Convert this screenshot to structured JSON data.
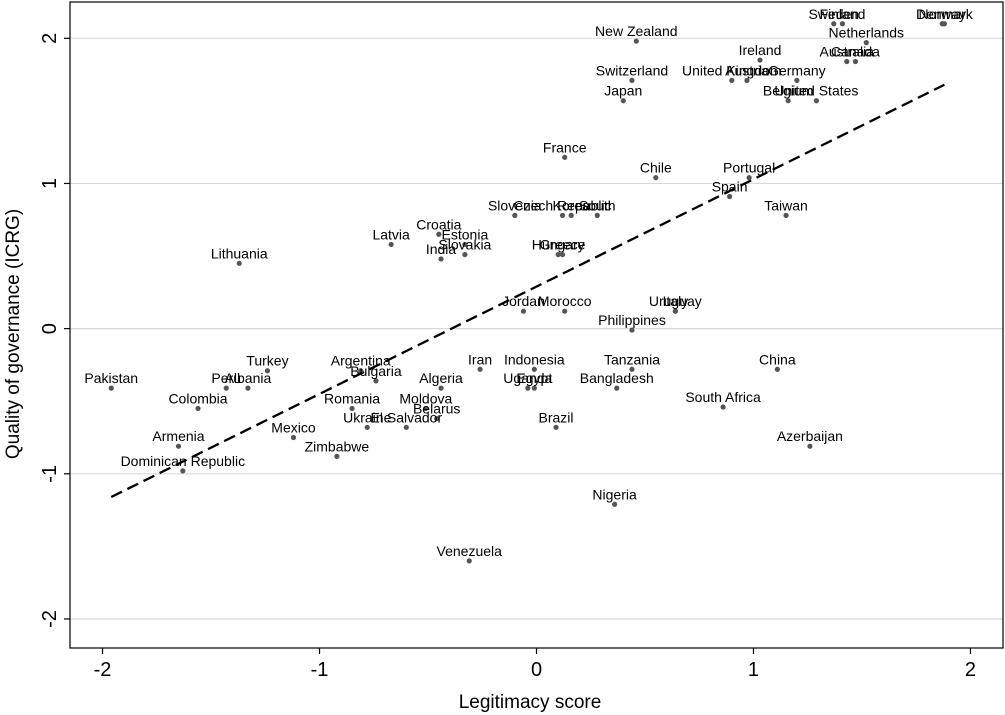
{
  "chart_data": {
    "type": "scatter",
    "title": "",
    "xlabel": "Legitimacy score",
    "ylabel": "Quality of governance (ICRG)",
    "xlim": [
      -2.15,
      2.15
    ],
    "ylim": [
      -2.2,
      2.25
    ],
    "xticks": [
      -2,
      -1,
      0,
      1,
      2
    ],
    "yticks": [
      -2,
      -1,
      0,
      1,
      2
    ],
    "xtick_labels": [
      "-2",
      "-1",
      "0",
      "1",
      "2"
    ],
    "ytick_labels": [
      "-2",
      "-1",
      "0",
      "1",
      "2"
    ],
    "grid": "horizontal",
    "legend": "none",
    "colors": {
      "points": "#555555",
      "fit_line": "#000000",
      "grid": "#d9d9d9",
      "frame": "#000000"
    },
    "fit_line": {
      "style": "dashed",
      "x": [
        -1.96,
        1.88
      ],
      "y": [
        -1.16,
        1.68
      ]
    },
    "points": [
      {
        "label": "Denmark",
        "x": 1.88,
        "y": 2.1
      },
      {
        "label": "Norway",
        "x": 1.87,
        "y": 2.1
      },
      {
        "label": "Sweden",
        "x": 1.37,
        "y": 2.1
      },
      {
        "label": "Finland",
        "x": 1.41,
        "y": 2.1
      },
      {
        "label": "Netherlands",
        "x": 1.52,
        "y": 1.97
      },
      {
        "label": "New Zealand",
        "x": 0.46,
        "y": 1.98
      },
      {
        "label": "Ireland",
        "x": 1.03,
        "y": 1.85
      },
      {
        "label": "Australia",
        "x": 1.43,
        "y": 1.84
      },
      {
        "label": "Canada",
        "x": 1.47,
        "y": 1.84
      },
      {
        "label": "Switzerland",
        "x": 0.44,
        "y": 1.71
      },
      {
        "label": "United Kingdom",
        "x": 0.9,
        "y": 1.71
      },
      {
        "label": "Austria",
        "x": 0.97,
        "y": 1.71
      },
      {
        "label": "Germany",
        "x": 1.2,
        "y": 1.71
      },
      {
        "label": "Belgium",
        "x": 1.16,
        "y": 1.57
      },
      {
        "label": "United States",
        "x": 1.29,
        "y": 1.57
      },
      {
        "label": "Japan",
        "x": 0.4,
        "y": 1.57
      },
      {
        "label": "France",
        "x": 0.13,
        "y": 1.18
      },
      {
        "label": "Chile",
        "x": 0.55,
        "y": 1.04
      },
      {
        "label": "Portugal",
        "x": 0.98,
        "y": 1.04
      },
      {
        "label": "Spain",
        "x": 0.89,
        "y": 0.91
      },
      {
        "label": "Taiwan",
        "x": 1.15,
        "y": 0.78
      },
      {
        "label": "Slovenia",
        "x": -0.1,
        "y": 0.78
      },
      {
        "label": "Czech Republic",
        "x": 0.12,
        "y": 0.78
      },
      {
        "label": "Korea",
        "x": 0.16,
        "y": 0.78
      },
      {
        "label": "South",
        "x": 0.28,
        "y": 0.78
      },
      {
        "label": "Latvia",
        "x": -0.67,
        "y": 0.58
      },
      {
        "label": "Croatia",
        "x": -0.45,
        "y": 0.65
      },
      {
        "label": "Estonia",
        "x": -0.33,
        "y": 0.58
      },
      {
        "label": "India",
        "x": -0.44,
        "y": 0.48
      },
      {
        "label": "Slovakia",
        "x": -0.33,
        "y": 0.51
      },
      {
        "label": "Hungary",
        "x": 0.1,
        "y": 0.51
      },
      {
        "label": "Greece",
        "x": 0.12,
        "y": 0.51
      },
      {
        "label": "Lithuania",
        "x": -1.37,
        "y": 0.45
      },
      {
        "label": "Jordan",
        "x": -0.06,
        "y": 0.12
      },
      {
        "label": "Morocco",
        "x": 0.13,
        "y": 0.12
      },
      {
        "label": "Italy",
        "x": 0.64,
        "y": 0.12
      },
      {
        "label": "Uruguay",
        "x": 0.64,
        "y": 0.12
      },
      {
        "label": "Philippines",
        "x": 0.44,
        "y": -0.01
      },
      {
        "label": "Pakistan",
        "x": -1.96,
        "y": -0.41
      },
      {
        "label": "Turkey",
        "x": -1.24,
        "y": -0.29
      },
      {
        "label": "Peru",
        "x": -1.43,
        "y": -0.41
      },
      {
        "label": "Albania",
        "x": -1.33,
        "y": -0.41
      },
      {
        "label": "Colombia",
        "x": -1.56,
        "y": -0.55
      },
      {
        "label": "Argentina",
        "x": -0.81,
        "y": -0.29
      },
      {
        "label": "Bulgaria",
        "x": -0.74,
        "y": -0.36
      },
      {
        "label": "Algeria",
        "x": -0.44,
        "y": -0.41
      },
      {
        "label": "Iran",
        "x": -0.26,
        "y": -0.28
      },
      {
        "label": "Indonesia",
        "x": -0.01,
        "y": -0.28
      },
      {
        "label": "Tanzania",
        "x": 0.44,
        "y": -0.28
      },
      {
        "label": "China",
        "x": 1.11,
        "y": -0.28
      },
      {
        "label": "Uganda",
        "x": -0.04,
        "y": -0.41
      },
      {
        "label": "Egypt",
        "x": -0.01,
        "y": -0.41
      },
      {
        "label": "Bangladesh",
        "x": 0.37,
        "y": -0.41
      },
      {
        "label": "South Africa",
        "x": 0.86,
        "y": -0.54
      },
      {
        "label": "Romania",
        "x": -0.85,
        "y": -0.55
      },
      {
        "label": "Moldova",
        "x": -0.51,
        "y": -0.55
      },
      {
        "label": "Belarus",
        "x": -0.46,
        "y": -0.62
      },
      {
        "label": "Ukraine",
        "x": -0.78,
        "y": -0.68
      },
      {
        "label": "El Salvador",
        "x": -0.6,
        "y": -0.68
      },
      {
        "label": "Brazil",
        "x": 0.09,
        "y": -0.68
      },
      {
        "label": "Mexico",
        "x": -1.12,
        "y": -0.75
      },
      {
        "label": "Zimbabwe",
        "x": -0.92,
        "y": -0.88
      },
      {
        "label": "Armenia",
        "x": -1.65,
        "y": -0.81
      },
      {
        "label": "Azerbaijan",
        "x": 1.26,
        "y": -0.81
      },
      {
        "label": "Dominican Republic",
        "x": -1.63,
        "y": -0.98
      },
      {
        "label": "Nigeria",
        "x": 0.36,
        "y": -1.21
      },
      {
        "label": "Venezuela",
        "x": -0.31,
        "y": -1.6
      }
    ]
  }
}
